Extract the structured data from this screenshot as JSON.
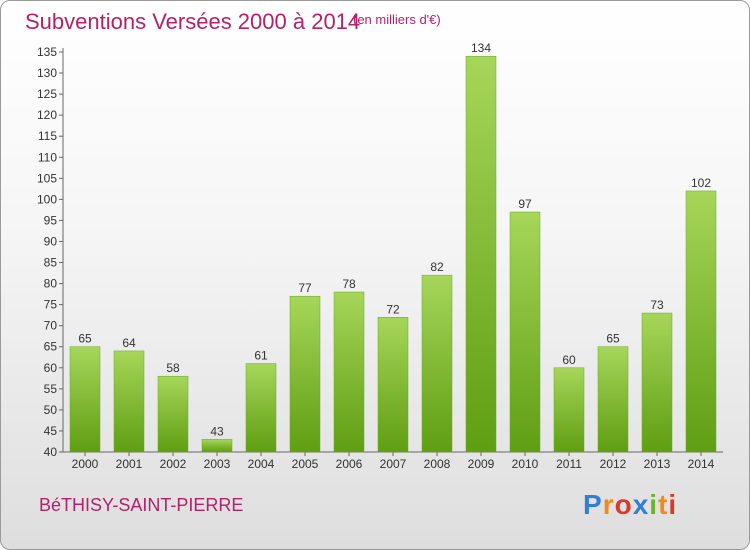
{
  "header": {
    "title": "Subventions Versées 2000 à 2014",
    "subtitle": "(en milliers d'€)"
  },
  "footer": {
    "commune": "BéTHISY-SAINT-PIERRE",
    "logo_text": "Proxiti"
  },
  "colors": {
    "title": "#b5206a",
    "bar_light": "#a6d65a",
    "bar_dark": "#5f9e12",
    "logo_letters": [
      "#2f7fd6",
      "#f08a1c",
      "#d93a2b",
      "#2f7fd6",
      "#6ab42d",
      "#f08a1c",
      "#d93a2b"
    ]
  },
  "chart_data": {
    "type": "bar",
    "title": "Subventions Versées 2000 à 2014",
    "subtitle": "(en milliers d'€)",
    "categories": [
      "2000",
      "2001",
      "2002",
      "2003",
      "2004",
      "2005",
      "2006",
      "2007",
      "2008",
      "2009",
      "2010",
      "2011",
      "2012",
      "2013",
      "2014"
    ],
    "values": [
      65,
      64,
      58,
      43,
      61,
      77,
      78,
      72,
      82,
      134,
      97,
      60,
      65,
      73,
      102
    ],
    "ylim": [
      40,
      135
    ],
    "yticks": [
      40,
      45,
      50,
      55,
      60,
      65,
      70,
      75,
      80,
      85,
      90,
      95,
      100,
      105,
      110,
      115,
      120,
      125,
      130,
      135
    ],
    "grid": false,
    "legend": "none"
  }
}
